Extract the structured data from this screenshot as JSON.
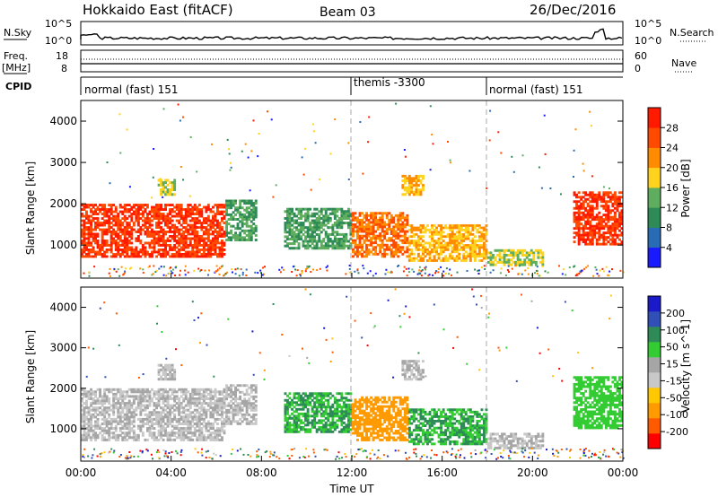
{
  "header": {
    "title": "Hokkaido East (fitACF)",
    "beam": "Beam 03",
    "date": "26/Dec/2016"
  },
  "top_panels": {
    "nsky_label": "N.Sky",
    "nsky_ticks": [
      "10^5",
      "10^0"
    ],
    "nsearch_label": "N.Search",
    "nsearch_ticks": [
      "10^5",
      "10^0"
    ],
    "freq_label_1": "Freq.",
    "freq_label_2": "[MHz]",
    "freq_ticks": [
      "18",
      "8"
    ],
    "nave_label": "Nave",
    "nave_ticks": [
      "60",
      "0"
    ],
    "cpid_label": "CPID",
    "cpid_segments": [
      {
        "label": "normal (fast) 151",
        "start_h": 0,
        "end_h": 12
      },
      {
        "label": "themis -3300",
        "start_h": 12,
        "end_h": 18
      },
      {
        "label": "normal (fast) 151",
        "start_h": 18,
        "end_h": 24
      }
    ]
  },
  "colors": {
    "power_scale": [
      "#1a1aff",
      "#2a6bb6",
      "#2e8b57",
      "#5fae5f",
      "#ffd21e",
      "#ff8c00",
      "#ff4a00",
      "#ff1a00"
    ],
    "velocity_scale": [
      "#ff0000",
      "#ff5a00",
      "#ff9a00",
      "#ffc800",
      "#c8c8c8",
      "#a6a6a6",
      "#33cc33",
      "#2e8b57",
      "#3050b8",
      "#1a1ac8"
    ]
  },
  "chart_data": [
    {
      "type": "heatmap",
      "name": "power-panel",
      "ylabel": "Slant Range [km]",
      "xlabel": "",
      "xlim": [
        0,
        24
      ],
      "ylim": [
        200,
        4500
      ],
      "yticks": [
        "1000",
        "2000",
        "3000",
        "4000"
      ],
      "xticks_dashed_hours": [
        12,
        18
      ],
      "colorbar": {
        "label": "Power [dB]",
        "ticks": [
          "28",
          "24",
          "20",
          "16",
          "12",
          "8",
          "4"
        ],
        "range": [
          0,
          32
        ]
      },
      "regions": [
        {
          "x": [
            0,
            6.4
          ],
          "y": [
            700,
            2000
          ],
          "value": 28
        },
        {
          "x": [
            6.4,
            7.8
          ],
          "y": [
            1100,
            2100
          ],
          "value": 12
        },
        {
          "x": [
            9.0,
            12.0
          ],
          "y": [
            900,
            1900
          ],
          "value": 12
        },
        {
          "x": [
            12.0,
            14.5
          ],
          "y": [
            700,
            1800
          ],
          "value": 24
        },
        {
          "x": [
            14.5,
            18.0
          ],
          "y": [
            600,
            1500
          ],
          "value": 20
        },
        {
          "x": [
            18.0,
            20.5
          ],
          "y": [
            500,
            900
          ],
          "value": 16
        },
        {
          "x": [
            14.2,
            15.2
          ],
          "y": [
            2200,
            2700
          ],
          "value": 20
        },
        {
          "x": [
            21.8,
            24.0
          ],
          "y": [
            1000,
            2300
          ],
          "value": 28
        },
        {
          "x": [
            3.4,
            4.2
          ],
          "y": [
            2200,
            2600
          ],
          "value": 16
        }
      ]
    },
    {
      "type": "heatmap",
      "name": "velocity-panel",
      "ylabel": "Slant Range [km]",
      "xlabel": "Time UT",
      "xlim": [
        0,
        24
      ],
      "ylim": [
        200,
        4500
      ],
      "yticks": [
        "1000",
        "2000",
        "3000",
        "4000"
      ],
      "xticks": [
        "00:00",
        "04:00",
        "08:00",
        "12:00",
        "16:00",
        "20:00",
        "00:00"
      ],
      "xticks_dashed_hours": [
        12,
        18
      ],
      "colorbar": {
        "label": "Velocity [m s^-1]",
        "ticks": [
          "200",
          "100",
          "50",
          "15",
          "-15",
          "-50",
          "-100",
          "-200"
        ],
        "range": [
          -250,
          250
        ]
      },
      "regions": [
        {
          "x": [
            0,
            6.4
          ],
          "y": [
            700,
            2000
          ],
          "value": 0
        },
        {
          "x": [
            6.4,
            7.8
          ],
          "y": [
            1100,
            2100
          ],
          "value": 0
        },
        {
          "x": [
            9.0,
            12.0
          ],
          "y": [
            900,
            1900
          ],
          "value": 50
        },
        {
          "x": [
            12.0,
            14.5
          ],
          "y": [
            700,
            1800
          ],
          "value": -70
        },
        {
          "x": [
            14.5,
            18.0
          ],
          "y": [
            600,
            1500
          ],
          "value": 50
        },
        {
          "x": [
            18.0,
            20.5
          ],
          "y": [
            500,
            900
          ],
          "value": 0
        },
        {
          "x": [
            14.2,
            15.2
          ],
          "y": [
            2200,
            2700
          ],
          "value": 0
        },
        {
          "x": [
            21.8,
            24.0
          ],
          "y": [
            1000,
            2300
          ],
          "value": 20
        },
        {
          "x": [
            3.4,
            4.2
          ],
          "y": [
            2200,
            2600
          ],
          "value": 0
        }
      ]
    }
  ]
}
